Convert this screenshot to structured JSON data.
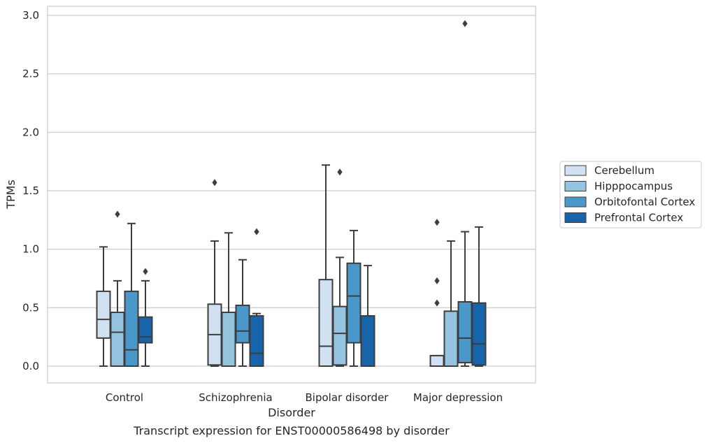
{
  "chart_data": {
    "type": "box",
    "title": "",
    "caption": "Transcript expression for ENST00000586498 by disorder",
    "xlabel": "Disorder",
    "ylabel": "TPMs",
    "ylim": [
      -0.14,
      3.08
    ],
    "yticks": [
      "0.0",
      "0.5",
      "1.0",
      "1.5",
      "2.0",
      "2.5",
      "3.0"
    ],
    "grid": "horizontal",
    "legend_placement": "right",
    "categories": [
      "Control",
      "Schizophrenia",
      "Bipolar disorder",
      "Major depression"
    ],
    "series": [
      {
        "name": "Cerebellum",
        "color": "#d0e1f2",
        "boxes": [
          {
            "whislo": 0.0,
            "q1": 0.24,
            "med": 0.4,
            "q3": 0.64,
            "whishi": 1.02,
            "fliers": []
          },
          {
            "whislo": 0.0,
            "q1": 0.01,
            "med": 0.27,
            "q3": 0.53,
            "whishi": 1.07,
            "fliers": [
              1.57
            ]
          },
          {
            "whislo": 0.0,
            "q1": 0.0,
            "med": 0.17,
            "q3": 0.74,
            "whishi": 1.72,
            "fliers": []
          },
          {
            "whislo": 0.0,
            "q1": 0.0,
            "med": 0.0,
            "q3": 0.09,
            "whishi": 0.09,
            "fliers": [
              0.54,
              0.73,
              1.23
            ]
          }
        ]
      },
      {
        "name": "Hipppocampus",
        "color": "#94c4df",
        "boxes": [
          {
            "whislo": 0.0,
            "q1": 0.0,
            "med": 0.29,
            "q3": 0.46,
            "whishi": 0.73,
            "fliers": [
              1.3
            ]
          },
          {
            "whislo": 0.0,
            "q1": 0.0,
            "med": 0.0,
            "q3": 0.46,
            "whishi": 1.14,
            "fliers": []
          },
          {
            "whislo": 0.0,
            "q1": 0.01,
            "med": 0.28,
            "q3": 0.51,
            "whishi": 0.93,
            "fliers": [
              1.66
            ]
          },
          {
            "whislo": 0.0,
            "q1": 0.0,
            "med": 0.0,
            "q3": 0.47,
            "whishi": 1.07,
            "fliers": []
          }
        ]
      },
      {
        "name": "Orbitofontal Cortex",
        "color": "#4a98c9",
        "boxes": [
          {
            "whislo": 0.0,
            "q1": 0.0,
            "med": 0.14,
            "q3": 0.64,
            "whishi": 1.22,
            "fliers": []
          },
          {
            "whislo": 0.0,
            "q1": 0.2,
            "med": 0.3,
            "q3": 0.52,
            "whishi": 0.91,
            "fliers": []
          },
          {
            "whislo": 0.0,
            "q1": 0.2,
            "med": 0.6,
            "q3": 0.88,
            "whishi": 1.16,
            "fliers": []
          },
          {
            "whislo": 0.0,
            "q1": 0.03,
            "med": 0.24,
            "q3": 0.55,
            "whishi": 1.15,
            "fliers": [
              2.93
            ]
          }
        ]
      },
      {
        "name": "Prefrontal Cortex",
        "color": "#1764ab",
        "boxes": [
          {
            "whislo": 0.0,
            "q1": 0.2,
            "med": 0.25,
            "q3": 0.42,
            "whishi": 0.73,
            "fliers": [
              0.81
            ]
          },
          {
            "whislo": 0.0,
            "q1": 0.0,
            "med": 0.11,
            "q3": 0.43,
            "whishi": 0.45,
            "fliers": [
              1.15
            ]
          },
          {
            "whislo": 0.0,
            "q1": 0.0,
            "med": 0.0,
            "q3": 0.43,
            "whishi": 0.86,
            "fliers": []
          },
          {
            "whislo": 0.0,
            "q1": 0.01,
            "med": 0.19,
            "q3": 0.54,
            "whishi": 1.19,
            "fliers": []
          }
        ]
      }
    ]
  }
}
